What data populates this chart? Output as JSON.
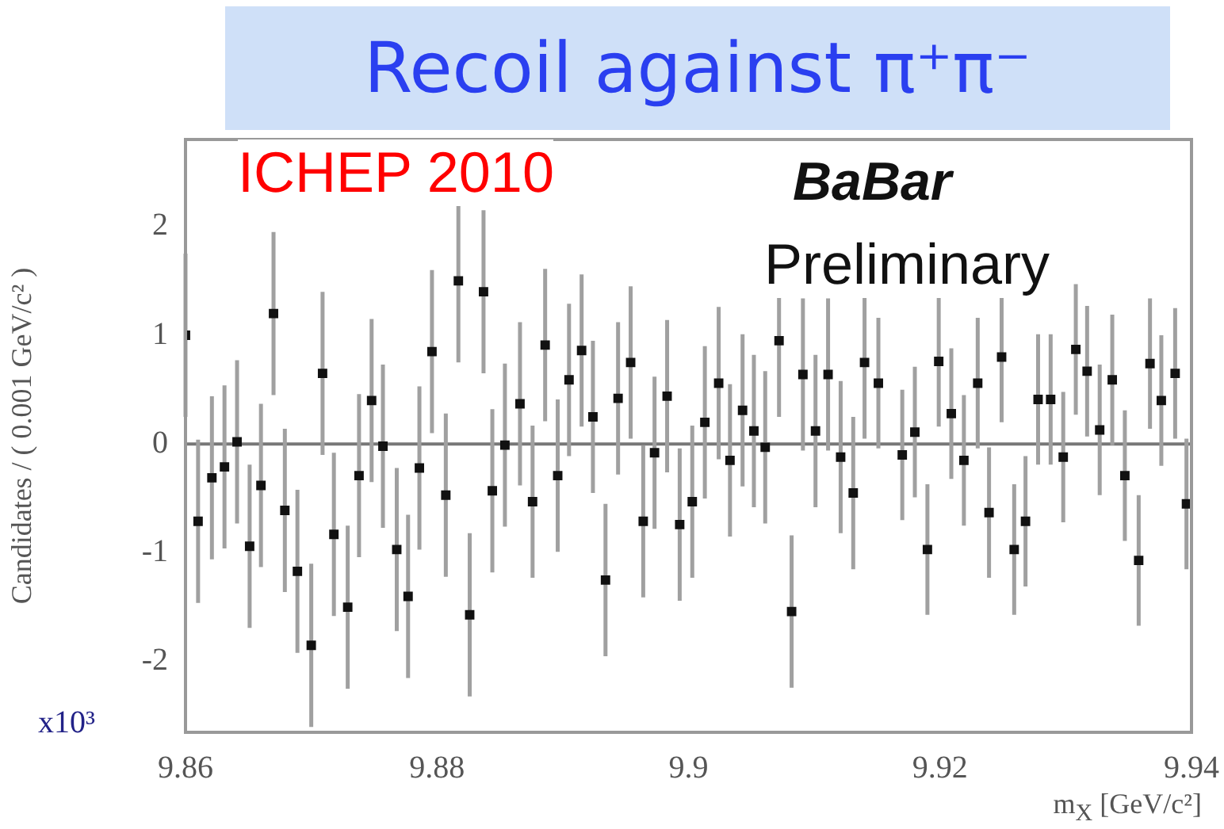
{
  "chart_data": {
    "type": "scatter",
    "title": "Recoil against π⁺π⁻",
    "xlabel": "m$_{X}$ [GeV/c²]",
    "ylabel": "Candidates / ( 0.001 GeV/c² )",
    "annotations": [
      "ICHEP 2010",
      "BaBar",
      "Preliminary",
      "x10³"
    ],
    "xlim": [
      9.86,
      9.94
    ],
    "xticks": [
      9.86,
      9.88,
      9.9,
      9.92,
      9.94
    ],
    "ylim": [
      -2.65,
      2.8
    ],
    "yticks": [
      -2,
      -1,
      0,
      1,
      2
    ],
    "grid": false,
    "legend": false,
    "marker": "square",
    "ref_lines": [
      {
        "axis": "y",
        "value": 0,
        "color": "#777777"
      }
    ],
    "series": [
      {
        "color": "#111111",
        "x": [
          9.86,
          9.861,
          9.8621,
          9.8631,
          9.8641,
          9.8651,
          9.866,
          9.867,
          9.8679,
          9.8689,
          9.87,
          9.8709,
          9.8718,
          9.8729,
          9.8738,
          9.8748,
          9.8757,
          9.8768,
          9.8777,
          9.8786,
          9.8796,
          9.8807,
          9.8817,
          9.8826,
          9.8837,
          9.8844,
          9.8854,
          9.8866,
          9.8876,
          9.8886,
          9.8896,
          9.8905,
          9.8915,
          9.8924,
          9.8934,
          9.8944,
          9.8954,
          9.8964,
          9.8973,
          9.8983,
          9.8993,
          9.9003,
          9.9013,
          9.9024,
          9.9033,
          9.9043,
          9.9052,
          9.9061,
          9.9072,
          9.9082,
          9.9091,
          9.9101,
          9.9111,
          9.9121,
          9.9131,
          9.914,
          9.9151,
          9.916,
          9.917,
          9.918,
          9.919,
          9.9199,
          9.9209,
          9.9219,
          9.923,
          9.9239,
          9.9249,
          9.9259,
          9.9268,
          9.9278,
          9.9288,
          9.9298,
          9.9308,
          9.9317,
          9.9327,
          9.9337,
          9.9347,
          9.9358,
          9.9367,
          9.9376,
          9.9387,
          9.9396
        ],
        "values": [
          1.0,
          -0.71,
          -0.31,
          -0.21,
          0.02,
          -0.94,
          -0.38,
          1.2,
          -0.61,
          -1.17,
          -1.85,
          0.65,
          -0.83,
          -1.5,
          -0.29,
          0.4,
          -0.02,
          -0.97,
          -1.4,
          -0.22,
          0.85,
          -0.47,
          1.5,
          -1.57,
          1.4,
          -0.43,
          -0.01,
          0.37,
          -0.53,
          0.91,
          -0.29,
          0.59,
          0.86,
          0.25,
          -1.25,
          0.42,
          0.75,
          -0.71,
          -0.08,
          0.44,
          -0.74,
          -0.53,
          0.2,
          0.56,
          -0.15,
          0.31,
          0.12,
          -0.03,
          0.95,
          -1.54,
          0.64,
          0.12,
          0.64,
          -0.12,
          -0.45,
          0.75,
          0.56,
          null,
          -0.1,
          0.11,
          -0.97,
          0.76,
          0.28,
          -0.15,
          0.56,
          -0.63,
          0.8,
          -0.97,
          -0.71,
          0.41,
          0.41,
          -0.12,
          0.87,
          0.67,
          0.13,
          0.59,
          -0.29,
          -1.07,
          0.74,
          0.4,
          0.65,
          -0.55
        ],
        "errors": [
          0.75,
          0.75,
          0.75,
          0.75,
          0.75,
          0.75,
          0.75,
          0.75,
          0.75,
          0.75,
          0.75,
          0.75,
          0.75,
          0.75,
          0.75,
          0.75,
          0.75,
          0.75,
          0.75,
          0.75,
          0.75,
          0.75,
          0.75,
          0.75,
          0.75,
          0.75,
          0.75,
          0.75,
          0.7,
          0.7,
          0.7,
          0.7,
          0.7,
          0.7,
          0.7,
          0.7,
          0.7,
          0.7,
          0.7,
          0.7,
          0.7,
          0.7,
          0.7,
          0.7,
          0.7,
          0.7,
          0.7,
          0.7,
          0.7,
          0.7,
          0.7,
          0.7,
          0.7,
          0.7,
          0.7,
          0.7,
          0.6,
          null,
          0.6,
          0.6,
          0.6,
          0.6,
          0.6,
          0.6,
          0.6,
          0.6,
          0.6,
          0.6,
          0.6,
          0.6,
          0.6,
          0.6,
          0.6,
          0.6,
          0.6,
          0.6,
          0.6,
          0.6,
          0.6,
          0.6,
          0.6,
          0.6
        ]
      }
    ]
  }
}
